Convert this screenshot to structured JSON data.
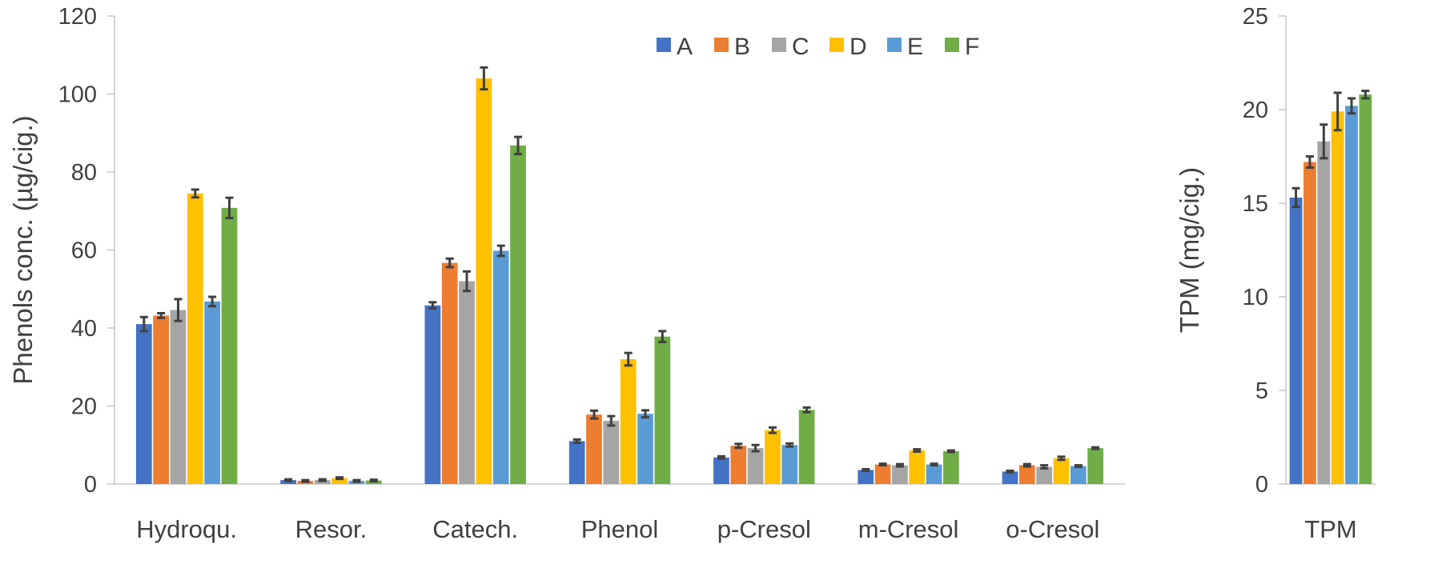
{
  "chart_data": [
    {
      "type": "bar",
      "xlabel": "",
      "ylabel": "Phenols conc. (µg/cig.)",
      "ylim": [
        0,
        120
      ],
      "yticks": [
        0,
        20,
        40,
        60,
        80,
        100,
        120
      ],
      "categories": [
        "Hydroqu.",
        "Resor.",
        "Catech.",
        "Phenol",
        "p-Cresol",
        "m-Cresol",
        "o-Cresol"
      ],
      "series": [
        {
          "name": "A",
          "color": "#4472C4",
          "values": [
            41.0,
            1.0,
            45.8,
            11.0,
            6.8,
            3.6,
            3.2
          ],
          "errors": [
            1.8,
            0.2,
            0.8,
            0.4,
            0.3,
            0.2,
            0.2
          ]
        },
        {
          "name": "B",
          "color": "#ED7D31",
          "values": [
            43.2,
            0.8,
            56.7,
            17.8,
            9.8,
            5.0,
            4.8
          ],
          "errors": [
            0.6,
            0.2,
            1.1,
            1.0,
            0.5,
            0.2,
            0.3
          ]
        },
        {
          "name": "C",
          "color": "#A5A5A5",
          "values": [
            44.6,
            1.0,
            52.0,
            16.2,
            9.2,
            4.8,
            4.4
          ],
          "errors": [
            2.8,
            0.2,
            2.5,
            1.2,
            0.8,
            0.3,
            0.4
          ]
        },
        {
          "name": "D",
          "color": "#FFC000",
          "values": [
            74.5,
            1.5,
            104.0,
            32.0,
            13.8,
            8.6,
            6.6
          ],
          "errors": [
            1.0,
            0.2,
            2.8,
            1.6,
            0.7,
            0.3,
            0.4
          ]
        },
        {
          "name": "E",
          "color": "#5B9BD5",
          "values": [
            46.8,
            0.8,
            59.8,
            18.0,
            10.0,
            5.0,
            4.6
          ],
          "errors": [
            1.2,
            0.2,
            1.3,
            0.9,
            0.4,
            0.2,
            0.2
          ]
        },
        {
          "name": "F",
          "color": "#70AD47",
          "values": [
            70.8,
            0.9,
            86.8,
            37.8,
            19.0,
            8.4,
            9.2
          ],
          "errors": [
            2.6,
            0.2,
            2.2,
            1.4,
            0.6,
            0.2,
            0.2
          ]
        }
      ],
      "legend": {
        "position": "top-center",
        "entries": [
          "A",
          "B",
          "C",
          "D",
          "E",
          "F"
        ]
      },
      "grid": false
    },
    {
      "type": "bar",
      "xlabel": "",
      "ylabel": "TPM (mg/cig.)",
      "ylim": [
        0,
        25
      ],
      "yticks": [
        0,
        5,
        10,
        15,
        20,
        25
      ],
      "categories": [
        "TPM"
      ],
      "series": [
        {
          "name": "A",
          "color": "#4472C4",
          "values": [
            15.3
          ],
          "errors": [
            0.5
          ]
        },
        {
          "name": "B",
          "color": "#ED7D31",
          "values": [
            17.2
          ],
          "errors": [
            0.3
          ]
        },
        {
          "name": "C",
          "color": "#A5A5A5",
          "values": [
            18.3
          ],
          "errors": [
            0.9
          ]
        },
        {
          "name": "D",
          "color": "#FFC000",
          "values": [
            19.9
          ],
          "errors": [
            1.0
          ]
        },
        {
          "name": "E",
          "color": "#5B9BD5",
          "values": [
            20.2
          ],
          "errors": [
            0.4
          ]
        },
        {
          "name": "F",
          "color": "#70AD47",
          "values": [
            20.8
          ],
          "errors": [
            0.2
          ]
        }
      ],
      "grid": false
    }
  ]
}
